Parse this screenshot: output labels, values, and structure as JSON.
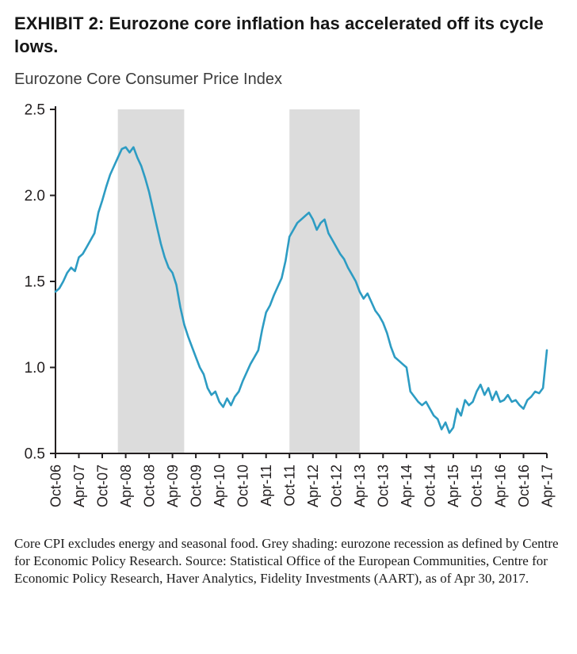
{
  "header": {
    "exhibit_title": "EXHIBIT 2: Eurozone core inflation has accelerated off its cycle lows.",
    "chart_subtitle": "Eurozone Core Consumer Price Index"
  },
  "footnote": "Core CPI excludes energy and seasonal food. Grey shading: eurozone recession as defined by Centre for Economic Policy Research. Source: Statistical Office of the European Communities, Centre for Economic Policy Research, Haver Analytics, Fidelity Investments (AART), as of Apr 30, 2017.",
  "chart_data": {
    "type": "line",
    "title": "Eurozone Core Consumer Price Index",
    "xlabel": "",
    "ylabel": "",
    "ylim": [
      0.5,
      2.5
    ],
    "yticks": [
      0.5,
      1.0,
      1.5,
      2.0,
      2.5
    ],
    "frequency": "monthly",
    "x_start": "Oct-06",
    "x_end": "Apr-17",
    "x_tick_labels": [
      "Oct-06",
      "Apr-07",
      "Oct-07",
      "Apr-08",
      "Oct-08",
      "Apr-09",
      "Oct-09",
      "Apr-10",
      "Oct-10",
      "Apr-11",
      "Oct-11",
      "Apr-12",
      "Oct-12",
      "Apr-13",
      "Oct-13",
      "Apr-14",
      "Oct-14",
      "Apr-15",
      "Oct-15",
      "Apr-16",
      "Oct-16",
      "Apr-17"
    ],
    "x_tick_indices": [
      0,
      6,
      12,
      18,
      24,
      30,
      36,
      42,
      48,
      54,
      60,
      66,
      72,
      78,
      84,
      90,
      96,
      102,
      108,
      114,
      120,
      126
    ],
    "line_color": "#2D9CC3",
    "axis_color": "#231F20",
    "recession_band_color": "#DCDCDC",
    "recession_bands": [
      {
        "start_index": 16,
        "end_index": 33,
        "start": "Feb-08",
        "end": "Jul-09"
      },
      {
        "start_index": 60,
        "end_index": 78,
        "start": "Oct-11",
        "end": "Apr-13"
      }
    ],
    "grid": false,
    "legend": "none",
    "series": [
      {
        "name": "Eurozone Core Consumer Price Index (y/y %)",
        "values": [
          1.44,
          1.46,
          1.5,
          1.55,
          1.58,
          1.56,
          1.64,
          1.66,
          1.7,
          1.74,
          1.78,
          1.9,
          1.97,
          2.05,
          2.12,
          2.17,
          2.22,
          2.27,
          2.28,
          2.25,
          2.28,
          2.22,
          2.17,
          2.1,
          2.02,
          1.92,
          1.82,
          1.72,
          1.64,
          1.58,
          1.55,
          1.48,
          1.35,
          1.25,
          1.18,
          1.12,
          1.06,
          1.0,
          0.96,
          0.88,
          0.84,
          0.86,
          0.8,
          0.77,
          0.82,
          0.78,
          0.83,
          0.86,
          0.92,
          0.97,
          1.02,
          1.06,
          1.1,
          1.22,
          1.32,
          1.36,
          1.42,
          1.47,
          1.52,
          1.62,
          1.76,
          1.8,
          1.84,
          1.86,
          1.88,
          1.9,
          1.86,
          1.8,
          1.84,
          1.86,
          1.78,
          1.74,
          1.7,
          1.66,
          1.63,
          1.58,
          1.54,
          1.5,
          1.44,
          1.4,
          1.43,
          1.38,
          1.33,
          1.3,
          1.26,
          1.2,
          1.12,
          1.06,
          1.04,
          1.02,
          1.0,
          0.86,
          0.83,
          0.8,
          0.78,
          0.8,
          0.76,
          0.72,
          0.7,
          0.64,
          0.68,
          0.62,
          0.65,
          0.76,
          0.72,
          0.81,
          0.78,
          0.8,
          0.86,
          0.9,
          0.84,
          0.88,
          0.81,
          0.86,
          0.8,
          0.81,
          0.84,
          0.8,
          0.81,
          0.78,
          0.76,
          0.81,
          0.83,
          0.86,
          0.85,
          0.88,
          1.1
        ]
      }
    ]
  }
}
